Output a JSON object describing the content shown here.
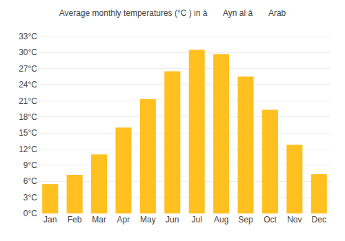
{
  "chart_data": {
    "type": "bar",
    "title": "Average monthly temperatures (°C ) in â Ayn al â Arab",
    "categories": [
      "Jan",
      "Feb",
      "Mar",
      "Apr",
      "May",
      "Jun",
      "Jul",
      "Aug",
      "Sep",
      "Oct",
      "Nov",
      "Dec"
    ],
    "values": [
      5.5,
      7.2,
      11.0,
      16.0,
      21.3,
      26.5,
      30.5,
      29.7,
      25.5,
      19.3,
      12.8,
      7.3
    ],
    "color": "#FFC020",
    "ylim": [
      0,
      34
    ],
    "yticks": [
      {
        "value": 0,
        "label": "0°C"
      },
      {
        "value": 3,
        "label": "3°C"
      },
      {
        "value": 6,
        "label": "6°C"
      },
      {
        "value": 9,
        "label": "9°C"
      },
      {
        "value": 12,
        "label": "12°C"
      },
      {
        "value": 15,
        "label": "15°C"
      },
      {
        "value": 18,
        "label": "18°C"
      },
      {
        "value": 21,
        "label": "21°C"
      },
      {
        "value": 24,
        "label": "24°C"
      },
      {
        "value": 27,
        "label": "27°C"
      },
      {
        "value": 30,
        "label": "30°C"
      },
      {
        "value": 33,
        "label": "33°C"
      }
    ],
    "grid": true
  }
}
